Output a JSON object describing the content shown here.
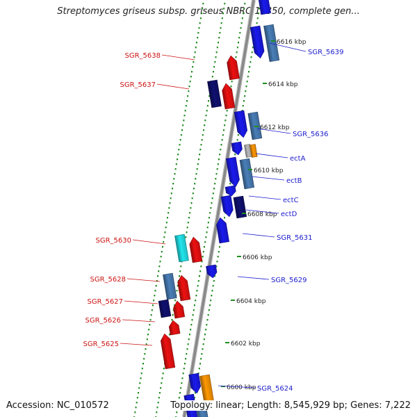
{
  "title": "Streptomyces griseus subsp. griseus NBRC 13350, complete gen...",
  "accession": "Accession: NC_010572",
  "summary": "Topology: linear; Length: 8,545,929 bp; Genes: 7,222",
  "colors": {
    "background": "#ffffff",
    "backbone": "#888888",
    "forward_label": "#1a1acc",
    "reverse_label": "#cc1111",
    "ring_dots": "#1e8c1e",
    "blue": "#1a1aee",
    "steel": "#4a7fb8",
    "navy": "#101070",
    "red": "#ee1111",
    "cyan": "#22e6ee",
    "orange": "#ff9900",
    "grey": "#bbbbbb"
  },
  "ticks": [
    "6616 kbp",
    "6614 kbp",
    "6612 kbp",
    "6610 kbp",
    "6608 kbp",
    "6606 kbp",
    "6604 kbp",
    "6602 kbp",
    "6600 kbp"
  ],
  "forward_labels": [
    "SGR_5639",
    "SGR_5636",
    "ectA",
    "ectB",
    "ectC",
    "ectD",
    "SGR_5631",
    "SGR_5629",
    "SGR_5624"
  ],
  "reverse_labels": [
    "SGR_5638",
    "SGR_5637",
    "SGR_5630",
    "SGR_5628",
    "SGR_5627",
    "SGR_5626",
    "SGR_5625"
  ]
}
